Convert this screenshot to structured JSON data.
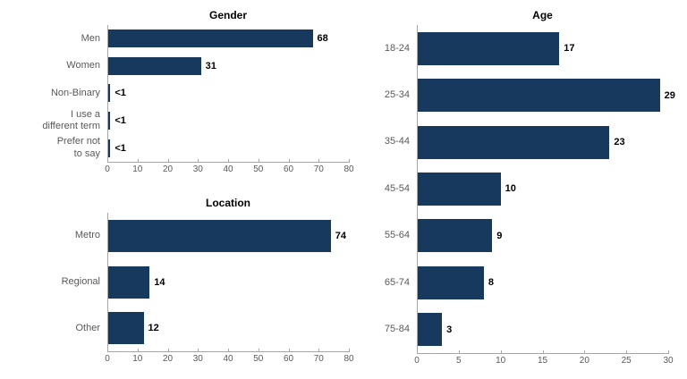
{
  "styles": {
    "bar_color": "#17395d",
    "axis_color": "#a6a6a6",
    "category_label_color": "#595959",
    "value_label_color": "#000000",
    "background": "#ffffff"
  },
  "chart_data": [
    {
      "type": "bar",
      "orientation": "horizontal",
      "title": "Gender",
      "categories": [
        "Men",
        "Women",
        "Non-Binary",
        "I use a\ndifferent term",
        "Prefer not\nto say"
      ],
      "values": [
        68,
        31,
        1,
        1,
        1
      ],
      "value_labels": [
        "68",
        "31",
        "<1",
        "<1",
        "<1"
      ],
      "xlim": [
        0,
        80
      ],
      "xticks": [
        0,
        10,
        20,
        30,
        40,
        50,
        60,
        70,
        80
      ],
      "grid": false,
      "legend": false
    },
    {
      "type": "bar",
      "orientation": "horizontal",
      "title": "Location",
      "categories": [
        "Metro",
        "Regional",
        "Other"
      ],
      "values": [
        74,
        14,
        12
      ],
      "value_labels": [
        "74",
        "14",
        "12"
      ],
      "xlim": [
        0,
        80
      ],
      "xticks": [
        0,
        10,
        20,
        30,
        40,
        50,
        60,
        70,
        80
      ],
      "grid": false,
      "legend": false
    },
    {
      "type": "bar",
      "orientation": "horizontal",
      "title": "Age",
      "categories": [
        "18-24",
        "25-34",
        "35-44",
        "45-54",
        "55-64",
        "65-74",
        "75-84"
      ],
      "values": [
        17,
        29,
        23,
        10,
        9,
        8,
        3
      ],
      "value_labels": [
        "17",
        "29",
        "23",
        "10",
        "9",
        "8",
        "3"
      ],
      "xlim": [
        0,
        30
      ],
      "xticks": [
        0,
        5,
        10,
        15,
        20,
        25,
        30
      ],
      "grid": false,
      "legend": false
    }
  ]
}
